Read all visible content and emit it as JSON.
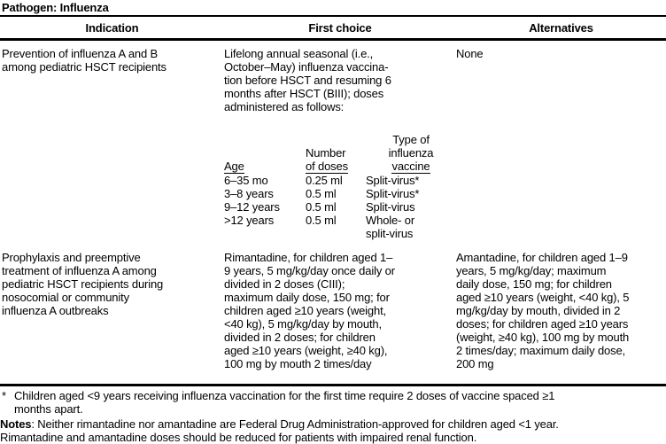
{
  "title": "Pathogen: Influenza",
  "columns": [
    "Indication",
    "First choice",
    "Alternatives"
  ],
  "rows": [
    {
      "indication": "Prevention of influenza A and B\namong pediatric HSCT recipients",
      "first_choice": "Lifelong annual seasonal (i.e.,\nOctober–May) influenza vaccina-\ntion before HSCT and resuming 6\nmonths after HSCT (BIII); doses\nadministered as follows:",
      "alternatives": "None",
      "dose_table": {
        "headers": {
          "age": "Age",
          "doses_top": "Number",
          "doses_bottom": "of doses",
          "type_top": "Type of\ninfluenza",
          "type_bottom": "vaccine"
        },
        "rows": [
          {
            "age": "6–35 mo",
            "doses": "0.25 ml",
            "type": "Split-virus*"
          },
          {
            "age": "3–8 years",
            "doses": "0.5 ml",
            "type": "Split-virus*"
          },
          {
            "age": "9–12 years",
            "doses": "0.5 ml",
            "type": "Split-virus"
          },
          {
            "age": ">12 years",
            "doses": "0.5 ml",
            "type": "Whole- or\nsplit-virus"
          }
        ]
      }
    },
    {
      "indication": "Prophylaxis and preemptive\ntreatment of influenza A among\npediatric HSCT recipients during\nnosocomial or community\ninfluenza A outbreaks",
      "first_choice": "Rimantadine, for children aged 1–\n9 years, 5 mg/kg/day once daily or\ndivided in 2 doses (CIII);\nmaximum daily dose, 150 mg; for\nchildren aged ≥10 years (weight,\n<40 kg), 5 mg/kg/day by mouth,\ndivided in 2 doses; for children\naged ≥10 years (weight, ≥40 kg),\n100 mg by mouth 2 times/day",
      "alternatives": "Amantadine, for children aged 1–9\nyears, 5 mg/kg/day; maximum\ndaily dose, 150 mg; for children\naged ≥10 years (weight, <40 kg), 5\nmg/kg/day by mouth, divided in 2\ndoses; for children aged ≥10 years\n(weight, ≥40 kg), 100 mg by mouth\n2 times/day; maximum daily dose,\n200 mg"
    }
  ],
  "footnotes": {
    "star_marker": "*",
    "star_text": "Children aged <9 years receiving influenza vaccination for the first time require 2 doses of vaccine spaced ≥1\nmonths apart.",
    "notes_label": "Notes",
    "notes_line1_rest": ": Neither rimantadine nor amantadine are Federal Drug Administration-approved for children aged <1 year.",
    "notes_line2": "Rimantadine and amantadine doses should be reduced for patients with impaired renal function."
  }
}
